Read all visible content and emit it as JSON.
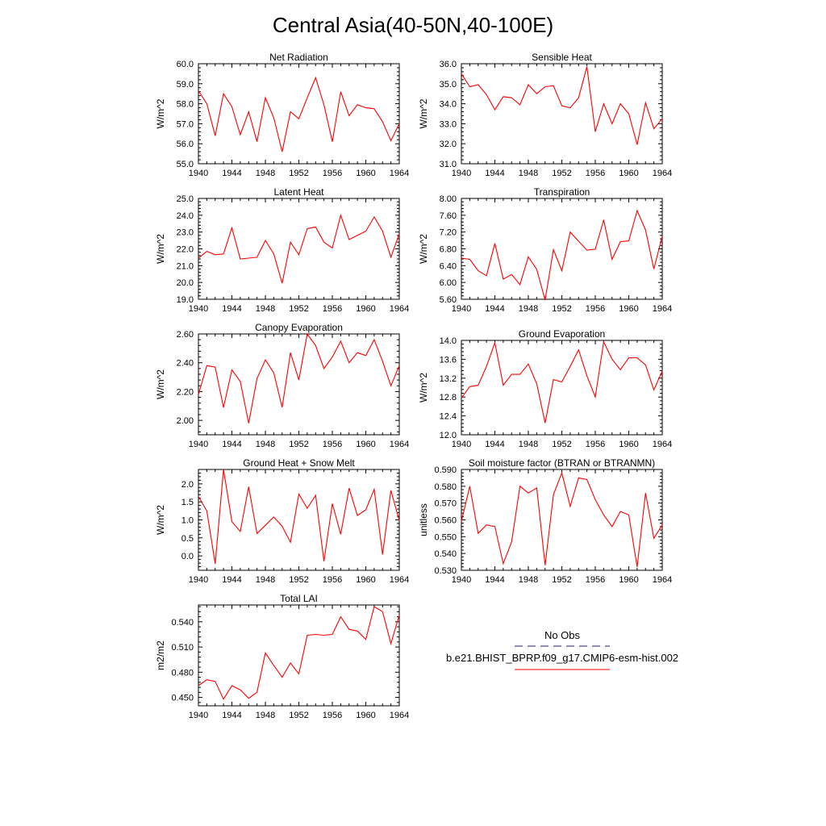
{
  "figure": {
    "title": "Central Asia(40-50N,40-100E)",
    "legend": {
      "items": [
        {
          "name": "No Obs",
          "color": "#1f1f6e",
          "dash": "dashed"
        },
        {
          "name": "b.e21.BHIST_BPRP.f09_g17.CMIP6-esm-hist.002",
          "color": "#ff0000",
          "dash": "solid"
        }
      ]
    }
  },
  "chart_data": [
    {
      "type": "line",
      "title": "Net Radiation",
      "ylabel": "W/m^2",
      "xlim": [
        1940,
        1964
      ],
      "ylim": [
        55.0,
        60.0
      ],
      "xticks": [
        1940,
        1944,
        1948,
        1952,
        1956,
        1960,
        1964
      ],
      "yticks": [
        "55.0",
        "56.0",
        "57.0",
        "58.0",
        "59.0",
        "60.0"
      ],
      "series": [
        {
          "name": "b.e21.BHIST_BPRP.f09_g17.CMIP6-esm-hist.002",
          "color": "#ff0000",
          "x": [
            1940,
            1941,
            1942,
            1943,
            1944,
            1945,
            1946,
            1947,
            1948,
            1949,
            1950,
            1951,
            1952,
            1953,
            1954,
            1955,
            1956,
            1957,
            1958,
            1959,
            1960,
            1961,
            1962,
            1963,
            1964
          ],
          "y": [
            58.65,
            58.0,
            56.4,
            58.5,
            57.85,
            56.45,
            57.6,
            56.1,
            58.3,
            57.3,
            55.6,
            57.6,
            57.25,
            58.3,
            59.3,
            57.95,
            56.1,
            58.6,
            57.4,
            57.95,
            57.8,
            57.75,
            57.1,
            56.15,
            57.0
          ]
        }
      ]
    },
    {
      "type": "line",
      "title": "Sensible Heat",
      "ylabel": "W/m^2",
      "xlim": [
        1940,
        1964
      ],
      "ylim": [
        31.0,
        36.0
      ],
      "xticks": [
        1940,
        1944,
        1948,
        1952,
        1956,
        1960,
        1964
      ],
      "yticks": [
        "31.0",
        "32.0",
        "33.0",
        "34.0",
        "35.0",
        "36.0"
      ],
      "series": [
        {
          "name": "b.e21.BHIST_BPRP.f09_g17.CMIP6-esm-hist.002",
          "color": "#ff0000",
          "x": [
            1940,
            1941,
            1942,
            1943,
            1944,
            1945,
            1946,
            1947,
            1948,
            1949,
            1950,
            1951,
            1952,
            1953,
            1954,
            1955,
            1956,
            1957,
            1958,
            1959,
            1960,
            1961,
            1962,
            1963,
            1964
          ],
          "y": [
            35.5,
            34.85,
            34.95,
            34.45,
            33.7,
            34.35,
            34.3,
            33.95,
            34.95,
            34.5,
            34.85,
            34.9,
            33.9,
            33.8,
            34.3,
            35.85,
            32.6,
            34.0,
            33.0,
            34.0,
            33.5,
            31.95,
            34.05,
            32.75,
            33.25
          ]
        }
      ]
    },
    {
      "type": "line",
      "title": "Latent Heat",
      "ylabel": "W/m^2",
      "xlim": [
        1940,
        1964
      ],
      "ylim": [
        19.0,
        25.0
      ],
      "xticks": [
        1940,
        1944,
        1948,
        1952,
        1956,
        1960,
        1964
      ],
      "yticks": [
        "19.0",
        "20.0",
        "21.0",
        "22.0",
        "23.0",
        "24.0",
        "25.0"
      ],
      "series": [
        {
          "name": "b.e21.BHIST_BPRP.f09_g17.CMIP6-esm-hist.002",
          "color": "#ff0000",
          "x": [
            1940,
            1941,
            1942,
            1943,
            1944,
            1945,
            1946,
            1947,
            1948,
            1949,
            1950,
            1951,
            1952,
            1953,
            1954,
            1955,
            1956,
            1957,
            1958,
            1959,
            1960,
            1961,
            1962,
            1963,
            1964
          ],
          "y": [
            21.45,
            21.85,
            21.65,
            21.7,
            23.25,
            21.4,
            21.45,
            21.5,
            22.5,
            21.7,
            19.95,
            22.4,
            21.65,
            23.2,
            23.3,
            22.4,
            22.05,
            24.0,
            22.55,
            22.8,
            23.05,
            23.9,
            23.05,
            21.5,
            22.9
          ]
        }
      ]
    },
    {
      "type": "line",
      "title": "Transpiration",
      "ylabel": "W/m^2",
      "xlim": [
        1940,
        1964
      ],
      "ylim": [
        5.6,
        8.0
      ],
      "xticks": [
        1940,
        1944,
        1948,
        1952,
        1956,
        1960,
        1964
      ],
      "yticks": [
        "5.60",
        "6.00",
        "6.40",
        "6.80",
        "7.20",
        "7.60",
        "8.00"
      ],
      "series": [
        {
          "name": "b.e21.BHIST_BPRP.f09_g17.CMIP6-esm-hist.002",
          "color": "#ff0000",
          "x": [
            1940,
            1941,
            1942,
            1943,
            1944,
            1945,
            1946,
            1947,
            1948,
            1949,
            1950,
            1951,
            1952,
            1953,
            1954,
            1955,
            1956,
            1957,
            1958,
            1959,
            1960,
            1961,
            1962,
            1963,
            1964
          ],
          "y": [
            6.58,
            6.55,
            6.28,
            6.16,
            6.93,
            6.08,
            6.19,
            5.95,
            6.61,
            6.31,
            5.58,
            6.78,
            6.28,
            7.2,
            6.98,
            6.77,
            6.79,
            7.49,
            6.55,
            6.97,
            6.99,
            7.71,
            7.25,
            6.32,
            7.1
          ]
        }
      ]
    },
    {
      "type": "line",
      "title": "Canopy Evaporation",
      "ylabel": "W/m^2",
      "xlim": [
        1940,
        1964
      ],
      "ylim": [
        1.9,
        2.6
      ],
      "xticks": [
        1940,
        1944,
        1948,
        1952,
        1956,
        1960,
        1964
      ],
      "yticks": [
        "2.00",
        "2.20",
        "2.40",
        "2.60"
      ],
      "series": [
        {
          "name": "b.e21.BHIST_BPRP.f09_g17.CMIP6-esm-hist.002",
          "color": "#ff0000",
          "x": [
            1940,
            1941,
            1942,
            1943,
            1944,
            1945,
            1946,
            1947,
            1948,
            1949,
            1950,
            1951,
            1952,
            1953,
            1954,
            1955,
            1956,
            1957,
            1958,
            1959,
            1960,
            1961,
            1962,
            1963,
            1964
          ],
          "y": [
            2.18,
            2.38,
            2.37,
            2.09,
            2.35,
            2.27,
            1.98,
            2.29,
            2.42,
            2.33,
            2.09,
            2.47,
            2.28,
            2.6,
            2.52,
            2.36,
            2.44,
            2.55,
            2.4,
            2.47,
            2.45,
            2.56,
            2.41,
            2.24,
            2.38
          ]
        }
      ]
    },
    {
      "type": "line",
      "title": "Ground Evaporation",
      "ylabel": "W/m^2",
      "xlim": [
        1940,
        1964
      ],
      "ylim": [
        12.0,
        14.0
      ],
      "xticks": [
        1940,
        1944,
        1948,
        1952,
        1956,
        1960,
        1964
      ],
      "yticks": [
        "12.0",
        "12.4",
        "12.8",
        "13.2",
        "13.6",
        "14.0"
      ],
      "series": [
        {
          "name": "b.e21.BHIST_BPRP.f09_g17.CMIP6-esm-hist.002",
          "color": "#ff0000",
          "x": [
            1940,
            1941,
            1942,
            1943,
            1944,
            1945,
            1946,
            1947,
            1948,
            1949,
            1950,
            1951,
            1952,
            1953,
            1954,
            1955,
            1956,
            1957,
            1958,
            1959,
            1960,
            1961,
            1962,
            1963,
            1964
          ],
          "y": [
            12.78,
            13.02,
            13.05,
            13.45,
            13.95,
            13.05,
            13.28,
            13.28,
            13.5,
            13.08,
            12.25,
            13.17,
            13.12,
            13.45,
            13.8,
            13.25,
            12.8,
            13.97,
            13.6,
            13.38,
            13.63,
            13.63,
            13.48,
            12.95,
            13.35
          ]
        }
      ]
    },
    {
      "type": "line",
      "title": "Ground Heat + Snow Melt",
      "ylabel": "W/m^2",
      "xlim": [
        1940,
        1964
      ],
      "ylim": [
        -0.4,
        2.4
      ],
      "xticks": [
        1940,
        1944,
        1948,
        1952,
        1956,
        1960,
        1964
      ],
      "yticks": [
        "0.0",
        "0.5",
        "1.0",
        "1.5",
        "2.0"
      ],
      "series": [
        {
          "name": "b.e21.BHIST_BPRP.f09_g17.CMIP6-esm-hist.002",
          "color": "#ff0000",
          "x": [
            1940,
            1941,
            1942,
            1943,
            1944,
            1945,
            1946,
            1947,
            1948,
            1949,
            1950,
            1951,
            1952,
            1953,
            1954,
            1955,
            1956,
            1957,
            1958,
            1959,
            1960,
            1961,
            1962,
            1963,
            1964
          ],
          "y": [
            1.65,
            1.25,
            -0.22,
            2.4,
            0.95,
            0.68,
            1.92,
            0.62,
            0.85,
            1.08,
            0.82,
            0.38,
            1.72,
            1.32,
            1.68,
            -0.15,
            1.45,
            0.6,
            1.88,
            1.12,
            1.28,
            1.85,
            0.04,
            1.82,
            0.98
          ]
        }
      ]
    },
    {
      "type": "line",
      "title": "Soil moisture factor (BTRAN or BTRANMN)",
      "ylabel": "unitless",
      "xlim": [
        1940,
        1964
      ],
      "ylim": [
        0.53,
        0.59
      ],
      "xticks": [
        1940,
        1944,
        1948,
        1952,
        1956,
        1960,
        1964
      ],
      "yticks": [
        "0.530",
        "0.540",
        "0.550",
        "0.560",
        "0.570",
        "0.580",
        "0.590"
      ],
      "series": [
        {
          "name": "b.e21.BHIST_BPRP.f09_g17.CMIP6-esm-hist.002",
          "color": "#ff0000",
          "x": [
            1940,
            1941,
            1942,
            1943,
            1944,
            1945,
            1946,
            1947,
            1948,
            1949,
            1950,
            1951,
            1952,
            1953,
            1954,
            1955,
            1956,
            1957,
            1958,
            1959,
            1960,
            1961,
            1962,
            1963,
            1964
          ],
          "y": [
            0.559,
            0.58,
            0.552,
            0.557,
            0.556,
            0.534,
            0.547,
            0.58,
            0.576,
            0.579,
            0.533,
            0.575,
            0.588,
            0.568,
            0.585,
            0.584,
            0.572,
            0.563,
            0.556,
            0.565,
            0.563,
            0.532,
            0.576,
            0.549,
            0.557
          ]
        }
      ]
    },
    {
      "type": "line",
      "title": "Total LAI",
      "ylabel": "m2/m2",
      "xlim": [
        1940,
        1964
      ],
      "ylim": [
        0.44,
        0.56
      ],
      "xticks": [
        1940,
        1944,
        1948,
        1952,
        1956,
        1960,
        1964
      ],
      "yticks": [
        "0.450",
        "0.480",
        "0.510",
        "0.540"
      ],
      "series": [
        {
          "name": "b.e21.BHIST_BPRP.f09_g17.CMIP6-esm-hist.002",
          "color": "#ff0000",
          "x": [
            1940,
            1941,
            1942,
            1943,
            1944,
            1945,
            1946,
            1947,
            1948,
            1949,
            1950,
            1951,
            1952,
            1953,
            1954,
            1955,
            1956,
            1957,
            1958,
            1959,
            1960,
            1961,
            1962,
            1963,
            1964
          ],
          "y": [
            0.464,
            0.471,
            0.469,
            0.448,
            0.464,
            0.459,
            0.449,
            0.456,
            0.503,
            0.488,
            0.474,
            0.491,
            0.478,
            0.524,
            0.525,
            0.524,
            0.525,
            0.546,
            0.531,
            0.529,
            0.519,
            0.558,
            0.552,
            0.514,
            0.548
          ]
        }
      ]
    }
  ]
}
